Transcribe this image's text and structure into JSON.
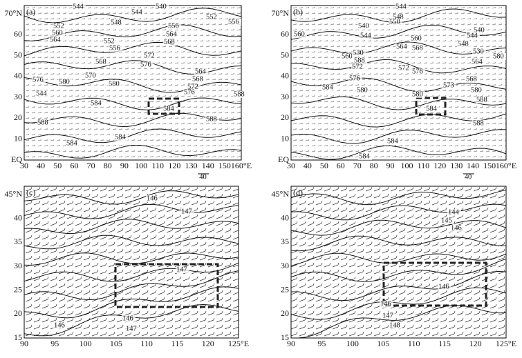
{
  "panels": [
    {
      "label": "(a)",
      "yticks": [
        "70°N",
        "60",
        "50",
        "40",
        "30",
        "20",
        "10",
        "EQ"
      ],
      "xticks": [
        "30",
        "40",
        "50",
        "60",
        "70",
        "80",
        "90",
        "100",
        "110",
        "120",
        "130",
        "140",
        "150",
        "160°E"
      ],
      "scale": "40",
      "contours": [
        "544",
        "544",
        "540",
        "552",
        "556",
        "552",
        "548",
        "556",
        "560",
        "564",
        "564",
        "568",
        "552",
        "556",
        "572",
        "568",
        "576",
        "564",
        "576",
        "570",
        "568",
        "580",
        "580",
        "572",
        "544",
        "576",
        "588",
        "584",
        "584",
        "588",
        "588",
        "584",
        "584"
      ]
    },
    {
      "label": "(b)",
      "yticks": [
        "70°N",
        "60",
        "50",
        "40",
        "30",
        "20",
        "10",
        "EQ"
      ],
      "xticks": [
        "30",
        "40",
        "50",
        "60",
        "70",
        "80",
        "90",
        "100",
        "110",
        "120",
        "130",
        "140",
        "150",
        "160°E"
      ],
      "scale": "40",
      "contours": [
        "544",
        "548",
        "550",
        "560",
        "540",
        "544",
        "540",
        "544",
        "560",
        "548",
        "564",
        "568",
        "530",
        "580",
        "560",
        "530",
        "588",
        "564",
        "572",
        "576",
        "572",
        "576",
        "568",
        "584",
        "580",
        "573",
        "580",
        "580",
        "588",
        "584",
        "588",
        "584",
        "584"
      ]
    },
    {
      "label": "(c)",
      "yticks": [
        "45°N",
        "40",
        "35",
        "30",
        "25",
        "20",
        "15"
      ],
      "xticks": [
        "90",
        "95",
        "100",
        "105",
        "110",
        "115",
        "120",
        "125°E"
      ],
      "contours": [
        "146",
        "147",
        "147",
        "146",
        "147",
        "146"
      ]
    },
    {
      "label": "(d)",
      "yticks": [
        "45°N",
        "40",
        "35",
        "30",
        "25",
        "20",
        "15"
      ],
      "xticks": [
        "90",
        "95",
        "100",
        "105",
        "110",
        "115",
        "120",
        "125°E"
      ],
      "contours": [
        "144",
        "145",
        "146",
        "146",
        "146",
        "147",
        "148"
      ]
    }
  ]
}
